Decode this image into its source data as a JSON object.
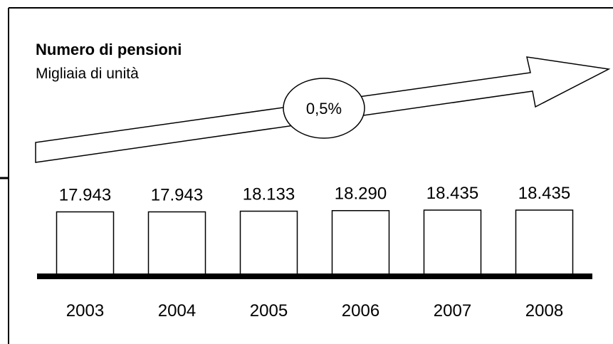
{
  "chart_data": {
    "type": "bar",
    "title": "Numero di pensioni",
    "subtitle": "Migliaia di unità",
    "annotation": "0,5%",
    "categories": [
      "2003",
      "2004",
      "2005",
      "2006",
      "2007",
      "2008"
    ],
    "values": [
      17943,
      17943,
      18133,
      18290,
      18435,
      18435
    ],
    "value_labels": [
      "17.943",
      "17.943",
      "18.133",
      "18.290",
      "18.435",
      "18.435"
    ],
    "color": "#ffffff"
  }
}
